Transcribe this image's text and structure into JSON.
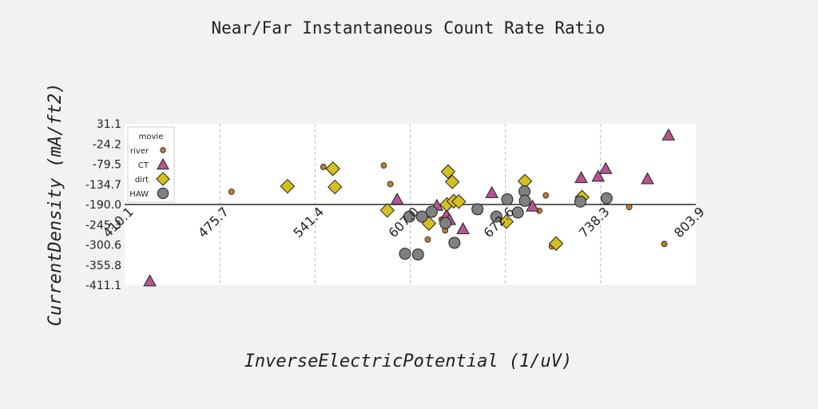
{
  "chart_data": {
    "type": "scatter",
    "title": "Near/Far Instantaneous Count Rate Ratio",
    "xlabel": "InverseElectricPotential (1/uV)",
    "ylabel": "CurrentDensity (mA/ft2)",
    "xlim": [
      410.1,
      803.9
    ],
    "ylim": [
      -411.1,
      31.1
    ],
    "xticks": [
      "410.1",
      "475.7",
      "541.4",
      "607.0",
      "672.6",
      "738.3",
      "803.9"
    ],
    "yticks": [
      "31.1",
      "-24.2",
      "-79.5",
      "-134.7",
      "-190.0",
      "-245.3",
      "-300.6",
      "-355.8",
      "-411.1"
    ],
    "baseline_y": -190.0,
    "grid": "vertical",
    "legend": {
      "title": "movie",
      "position": "top-left"
    },
    "series": [
      {
        "name": "river",
        "marker": "circle-small",
        "color": "#c07a2c",
        "points": [
          [
            483.8,
            -155
          ],
          [
            547.1,
            -87
          ],
          [
            588.8,
            -83
          ],
          [
            631.1,
            -261
          ],
          [
            593.3,
            -134
          ],
          [
            619.1,
            -286
          ],
          [
            654.5,
            -210
          ],
          [
            652.6,
            -210
          ],
          [
            628.6,
            -231
          ],
          [
            704.6,
            -305
          ],
          [
            696.0,
            -207
          ],
          [
            700.5,
            -165
          ],
          [
            758.0,
            -197
          ],
          [
            782.2,
            -298
          ]
        ]
      },
      {
        "name": "CT",
        "marker": "triangle",
        "color": "#b5558f",
        "points": [
          [
            427.5,
            -400
          ],
          [
            598.0,
            -176
          ],
          [
            625.4,
            -193
          ],
          [
            632.1,
            -219
          ],
          [
            634.1,
            -232
          ],
          [
            643.4,
            -257
          ],
          [
            663.3,
            -158
          ],
          [
            691.3,
            -195
          ],
          [
            724.9,
            -117
          ],
          [
            736.6,
            -113
          ],
          [
            741.8,
            -92
          ],
          [
            770.6,
            -120
          ],
          [
            785.1,
            0
          ]
        ]
      },
      {
        "name": "dirt",
        "marker": "diamond",
        "color": "#d4c01e",
        "points": [
          [
            522.4,
            -140
          ],
          [
            553.7,
            -92
          ],
          [
            555.1,
            -142
          ],
          [
            591.2,
            -206
          ],
          [
            619.9,
            -242
          ],
          [
            632.3,
            -190
          ],
          [
            633.1,
            -100
          ],
          [
            636.0,
            -128
          ],
          [
            637.0,
            -181
          ],
          [
            640.5,
            -182
          ],
          [
            673.3,
            -237
          ],
          [
            686.1,
            -126
          ],
          [
            707.6,
            -297
          ],
          [
            725.5,
            -170
          ]
        ]
      },
      {
        "name": "HAW",
        "marker": "circle",
        "color": "#808080",
        "points": [
          [
            603.4,
            -325
          ],
          [
            612.4,
            -327
          ],
          [
            606.4,
            -223
          ],
          [
            615.1,
            -223
          ],
          [
            621.8,
            -210
          ],
          [
            631.3,
            -241
          ],
          [
            637.5,
            -295
          ],
          [
            653.4,
            -203
          ],
          [
            666.4,
            -223
          ],
          [
            673.9,
            -176
          ],
          [
            681.2,
            -212
          ],
          [
            685.8,
            -154
          ],
          [
            686.1,
            -180
          ],
          [
            724.3,
            -182
          ],
          [
            742.4,
            -173
          ]
        ]
      }
    ]
  }
}
